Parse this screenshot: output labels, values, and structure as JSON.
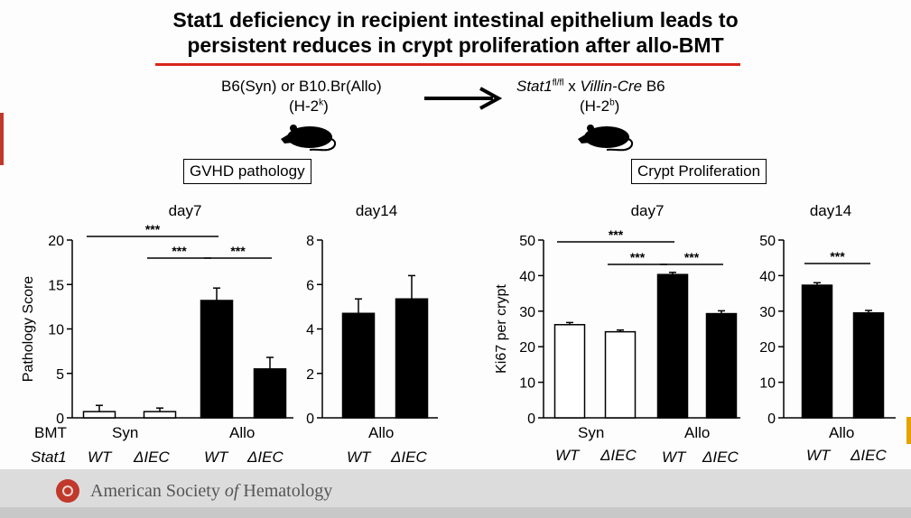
{
  "slide": {
    "title_line1": "Stat1 deficiency in recipient intestinal epithelium leads to",
    "title_line2": "persistent reduces in crypt proliferation after allo-BMT",
    "donor_label": "B6(Syn) or B10.Br(Allo)",
    "donor_haplotype_base": "(H-2",
    "donor_haplotype_sup": "k",
    "recipient_gene": "Stat1",
    "recipient_gene_sup": "fl/fl",
    "recipient_x": "x",
    "recipient_cre": "Villin-Cre",
    "recipient_strain": "B6",
    "recipient_haplotype_base": "(H-2",
    "recipient_haplotype_sup": "b",
    "close_paren": ")",
    "gvhd_box": "GVHD pathology",
    "crypt_box": "Crypt Proliferation",
    "row_bmt": "BMT",
    "row_stat1": "Stat1",
    "group_syn": "Syn",
    "group_allo": "Allo",
    "geno_wt": "WT",
    "geno_ko": "ΔIEC",
    "footer": {
      "org_pre": "American Society ",
      "org_of": "of",
      "org_post": " Hematology"
    },
    "colors": {
      "accent_red": "#d9261c",
      "bar_allo": "#000000",
      "bar_syn": "#ffffff"
    },
    "icons": [
      "mouse-icon",
      "arrow-right-icon",
      "ash-logo-icon"
    ]
  },
  "chart_data": [
    {
      "type": "bar",
      "title": "day7",
      "ylabel": "Pathology Score",
      "ylim": [
        0,
        20
      ],
      "yticks": [
        "0",
        "5",
        "10",
        "15",
        "20"
      ],
      "categories": [
        "Syn WT",
        "Syn ΔIEC",
        "Allo WT",
        "Allo ΔIEC"
      ],
      "values": [
        0.7,
        0.7,
        13.2,
        5.5
      ],
      "errors": [
        0.7,
        0.4,
        1.4,
        1.3
      ],
      "fills": [
        "white",
        "white",
        "black",
        "black"
      ],
      "significance": [
        {
          "from": 0,
          "to": 2,
          "label": "***"
        },
        {
          "from": 1,
          "to": 2,
          "label": "***"
        },
        {
          "from": 2,
          "to": 3,
          "label": "***"
        }
      ]
    },
    {
      "type": "bar",
      "title": "day14",
      "ylabel": "",
      "ylim": [
        0,
        8
      ],
      "yticks": [
        "0",
        "2",
        "4",
        "6",
        "8"
      ],
      "categories": [
        "Allo WT",
        "Allo ΔIEC"
      ],
      "values": [
        4.7,
        5.35
      ],
      "errors": [
        0.65,
        1.05
      ],
      "fills": [
        "black",
        "black"
      ],
      "significance": []
    },
    {
      "type": "bar",
      "title": "day7",
      "ylabel": "Ki67 per crypt",
      "ylim": [
        0,
        50
      ],
      "yticks": [
        "0",
        "10",
        "20",
        "30",
        "40",
        "50"
      ],
      "categories": [
        "Syn WT",
        "Syn ΔIEC",
        "Allo WT",
        "Allo ΔIEC"
      ],
      "values": [
        26.2,
        24.2,
        40.3,
        29.3
      ],
      "errors": [
        0.6,
        0.5,
        0.6,
        0.8
      ],
      "fills": [
        "white",
        "white",
        "black",
        "black"
      ],
      "significance": [
        {
          "from": 0,
          "to": 2,
          "label": "***"
        },
        {
          "from": 1,
          "to": 2,
          "label": "***"
        },
        {
          "from": 2,
          "to": 3,
          "label": "***"
        }
      ]
    },
    {
      "type": "bar",
      "title": "day14",
      "ylabel": "",
      "ylim": [
        0,
        50
      ],
      "yticks": [
        "0",
        "10",
        "20",
        "30",
        "40",
        "50"
      ],
      "categories": [
        "Allo WT",
        "Allo ΔIEC"
      ],
      "values": [
        37.3,
        29.5
      ],
      "errors": [
        0.7,
        0.7
      ],
      "fills": [
        "black",
        "black"
      ],
      "significance": [
        {
          "from": 0,
          "to": 1,
          "label": "***"
        }
      ]
    }
  ]
}
